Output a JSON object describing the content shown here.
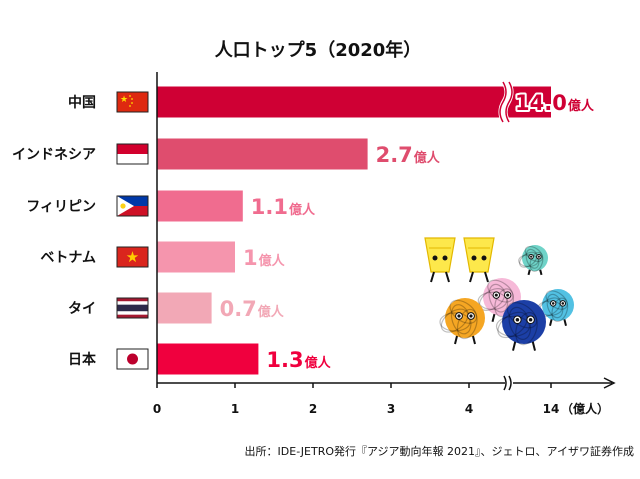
{
  "chart_data": {
    "type": "bar",
    "orientation": "horizontal",
    "title": "人口トップ5（2020年）",
    "categories": [
      "中国",
      "インドネシア",
      "フィリピン",
      "ベトナム",
      "タイ",
      "日本"
    ],
    "values": [
      14.0,
      2.7,
      1.1,
      1.0,
      0.7,
      1.3
    ],
    "value_labels": [
      "14.0",
      "2.7",
      "1.1",
      "1",
      "0.7",
      "1.3"
    ],
    "value_unit": "億人",
    "bar_colors": [
      "#cf0034",
      "#df4d6e",
      "#f06c8f",
      "#f595ad",
      "#f2a8b6",
      "#f0003e"
    ],
    "x_ticks": [
      "0",
      "1",
      "2",
      "3",
      "4",
      "14"
    ],
    "x_unit_label": "（億人）",
    "xlim": [
      0,
      14
    ],
    "axis_break": "between 4 and 14",
    "grid": false,
    "legend": "none"
  },
  "flags": [
    "china-flag",
    "indonesia-flag",
    "philippines-flag",
    "vietnam-flag",
    "thailand-flag",
    "japan-flag"
  ],
  "source": "出所：IDE-JETRO発行『アジア動向年報 2021』、ジェトロ、アイザワ証券作成",
  "decorations": [
    "illustrated-characters"
  ]
}
